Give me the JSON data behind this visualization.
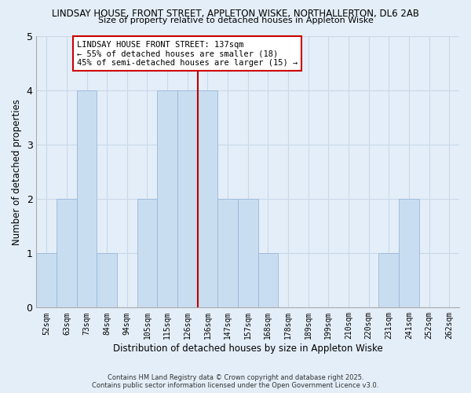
{
  "title1": "LINDSAY HOUSE, FRONT STREET, APPLETON WISKE, NORTHALLERTON, DL6 2AB",
  "title2": "Size of property relative to detached houses in Appleton Wiske",
  "xlabel": "Distribution of detached houses by size in Appleton Wiske",
  "ylabel": "Number of detached properties",
  "bin_labels": [
    "52sqm",
    "63sqm",
    "73sqm",
    "84sqm",
    "94sqm",
    "105sqm",
    "115sqm",
    "126sqm",
    "136sqm",
    "147sqm",
    "157sqm",
    "168sqm",
    "178sqm",
    "189sqm",
    "199sqm",
    "210sqm",
    "220sqm",
    "231sqm",
    "241sqm",
    "252sqm",
    "262sqm"
  ],
  "bar_heights": [
    1,
    2,
    4,
    1,
    0,
    2,
    4,
    4,
    4,
    2,
    2,
    1,
    0,
    0,
    0,
    0,
    0,
    1,
    2,
    0,
    0
  ],
  "bar_color": "#c8ddf0",
  "bar_edge_color": "#9ab8d8",
  "grid_color": "#c8d8e8",
  "background_color": "#e4eef8",
  "vline_x": 8.0,
  "vline_color": "#bb0000",
  "annotation_title": "LINDSAY HOUSE FRONT STREET: 137sqm",
  "annotation_line1": "← 55% of detached houses are smaller (18)",
  "annotation_line2": "45% of semi-detached houses are larger (15) →",
  "ylim": [
    0,
    5
  ],
  "yticks": [
    0,
    1,
    2,
    3,
    4,
    5
  ],
  "footer1": "Contains HM Land Registry data © Crown copyright and database right 2025.",
  "footer2": "Contains public sector information licensed under the Open Government Licence v3.0."
}
